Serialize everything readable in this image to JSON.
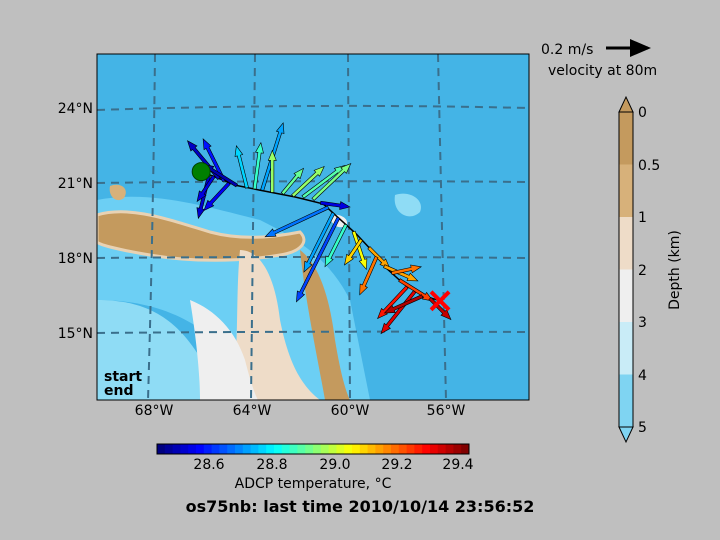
{
  "map": {
    "lat_ticks": [
      "24°N",
      "21°N",
      "18°N",
      "15°N"
    ],
    "lon_ticks": [
      "68°W",
      "64°W",
      "60°W",
      "56°W"
    ],
    "start_label": "start",
    "end_label": "end",
    "start_color": "#007f00",
    "end_color": "#ff0000"
  },
  "velocity_key": {
    "label": "0.2 m/s",
    "caption": "velocity at 80m"
  },
  "depth_colorbar": {
    "title": "Depth (km)",
    "ticks": [
      "0",
      "0.5",
      "1",
      "2",
      "3",
      "4",
      "5"
    ],
    "colors": [
      "#c49a5e",
      "#d7b17a",
      "#eedcc8",
      "#efefef",
      "#c9ecf7",
      "#7fd4f2"
    ]
  },
  "temp_colorbar": {
    "title": "ADCP temperature, °C",
    "ticks": [
      "28.6",
      "28.8",
      "29.0",
      "29.2",
      "29.4"
    ]
  },
  "footer": {
    "title": "os75nb: last time 2010/10/14 23:56:52"
  },
  "chart_data": {
    "type": "map",
    "lon_range": [
      -70,
      -53
    ],
    "lat_range": [
      12,
      27
    ],
    "temp_range": [
      28.4,
      29.45
    ],
    "start": {
      "lon": -65.9,
      "lat": 21.9
    },
    "end": {
      "lon": -56.5,
      "lat": 16.3
    },
    "track": [
      {
        "lon": -65.9,
        "lat": 21.9
      },
      {
        "lon": -64.5,
        "lat": 21.3
      },
      {
        "lon": -63.6,
        "lat": 21.1
      },
      {
        "lon": -62.2,
        "lat": 20.8
      },
      {
        "lon": -61.1,
        "lat": 20.5
      },
      {
        "lon": -60.5,
        "lat": 19.9
      },
      {
        "lon": -59.8,
        "lat": 19.2
      },
      {
        "lon": -59.2,
        "lat": 18.5
      },
      {
        "lon": -58.6,
        "lat": 17.7
      },
      {
        "lon": -57.9,
        "lat": 17.0
      },
      {
        "lon": -57.1,
        "lat": 16.5
      },
      {
        "lon": -56.5,
        "lat": 16.3
      }
    ],
    "vectors": [
      {
        "lon": -65.6,
        "lat": 21.7,
        "u": -0.05,
        "v": -0.2,
        "t": 28.48
      },
      {
        "lon": -65.4,
        "lat": 21.7,
        "u": -0.08,
        "v": -0.12,
        "t": 28.5
      },
      {
        "lon": -65.2,
        "lat": 21.6,
        "u": -0.15,
        "v": 0.18,
        "t": 28.47
      },
      {
        "lon": -65.0,
        "lat": 21.5,
        "u": -0.1,
        "v": 0.2,
        "t": 28.55
      },
      {
        "lon": -64.8,
        "lat": 21.4,
        "u": -0.12,
        "v": -0.13,
        "t": 28.52
      },
      {
        "lon": -64.5,
        "lat": 21.3,
        "u": -0.16,
        "v": 0.1,
        "t": 28.45
      },
      {
        "lon": -64.1,
        "lat": 21.2,
        "u": -0.05,
        "v": 0.2,
        "t": 28.75
      },
      {
        "lon": -63.8,
        "lat": 21.15,
        "u": 0.03,
        "v": 0.22,
        "t": 28.85
      },
      {
        "lon": -63.5,
        "lat": 21.1,
        "u": 0.1,
        "v": 0.32,
        "t": 28.7
      },
      {
        "lon": -63.1,
        "lat": 21.0,
        "u": 0.0,
        "v": 0.2,
        "t": 28.95
      },
      {
        "lon": -62.7,
        "lat": 20.95,
        "u": 0.1,
        "v": 0.12,
        "t": 28.9
      },
      {
        "lon": -62.3,
        "lat": 20.85,
        "u": 0.15,
        "v": 0.14,
        "t": 28.95
      },
      {
        "lon": -61.9,
        "lat": 20.8,
        "u": 0.2,
        "v": 0.15,
        "t": 28.88
      },
      {
        "lon": -61.5,
        "lat": 20.7,
        "u": 0.18,
        "v": 0.17,
        "t": 28.92
      },
      {
        "lon": -61.2,
        "lat": 20.55,
        "u": 0.14,
        "v": -0.02,
        "t": 28.5
      },
      {
        "lon": -60.9,
        "lat": 20.35,
        "u": -0.3,
        "v": -0.14,
        "t": 28.65
      },
      {
        "lon": -60.7,
        "lat": 20.1,
        "u": -0.14,
        "v": -0.28,
        "t": 28.7
      },
      {
        "lon": -60.5,
        "lat": 19.9,
        "u": -0.2,
        "v": -0.4,
        "t": 28.6
      },
      {
        "lon": -60.2,
        "lat": 19.6,
        "u": -0.1,
        "v": -0.2,
        "t": 28.85
      },
      {
        "lon": -59.9,
        "lat": 19.3,
        "u": 0.06,
        "v": -0.18,
        "t": 29.05
      },
      {
        "lon": -59.6,
        "lat": 18.95,
        "u": -0.08,
        "v": -0.12,
        "t": 29.1
      },
      {
        "lon": -59.3,
        "lat": 18.6,
        "u": 0.1,
        "v": -0.1,
        "t": 29.15
      },
      {
        "lon": -59.0,
        "lat": 18.2,
        "u": -0.08,
        "v": -0.18,
        "t": 29.2
      },
      {
        "lon": -58.7,
        "lat": 17.8,
        "u": 0.16,
        "v": -0.07,
        "t": 29.15
      },
      {
        "lon": -58.4,
        "lat": 17.5,
        "u": 0.14,
        "v": 0.03,
        "t": 29.2
      },
      {
        "lon": -58.1,
        "lat": 17.2,
        "u": 0.16,
        "v": -0.1,
        "t": 29.25
      },
      {
        "lon": -57.8,
        "lat": 16.9,
        "u": -0.14,
        "v": -0.15,
        "t": 29.3
      },
      {
        "lon": -57.5,
        "lat": 16.7,
        "u": -0.16,
        "v": -0.2,
        "t": 29.35
      },
      {
        "lon": -57.2,
        "lat": 16.5,
        "u": -0.18,
        "v": -0.08,
        "t": 29.4
      },
      {
        "lon": -56.9,
        "lat": 16.4,
        "u": 0.1,
        "v": -0.1,
        "t": 29.38
      }
    ]
  }
}
